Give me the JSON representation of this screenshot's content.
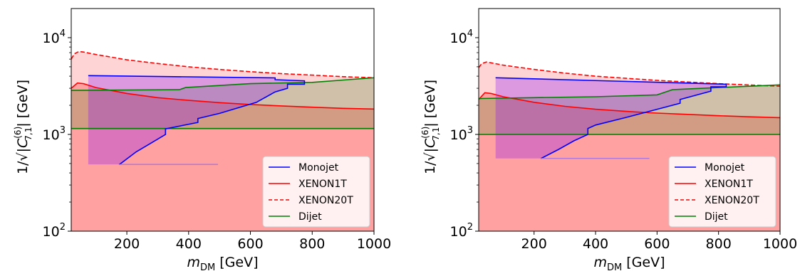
{
  "chart_data": [
    {
      "type": "line",
      "yscale": "log",
      "xlim": [
        20,
        1000
      ],
      "ylim": [
        100,
        20000
      ],
      "xlabel_main": "m",
      "xlabel_sub": "DM",
      "xlabel_unit": " [GeV]",
      "ylabel_prefix": "1/",
      "ylabel_sym": "|C",
      "ylabel_sup": "(6)",
      "ylabel_sub": "7,1",
      "ylabel_suffix": "| [GeV]",
      "xticks": [
        200,
        400,
        600,
        800,
        1000
      ],
      "xtick_labels": [
        "200",
        "400",
        "600",
        "800",
        "1000"
      ],
      "yticks": [
        {
          "value": 100,
          "base": "10",
          "exp": "2"
        },
        {
          "value": 1000,
          "base": "10",
          "exp": "3"
        },
        {
          "value": 10000,
          "base": "10",
          "exp": "4"
        }
      ],
      "legend": {
        "position": "lower right",
        "entries": [
          {
            "label": "Monojet",
            "color": "#0000ff",
            "dash": false
          },
          {
            "label": "XENON1T",
            "color": "#ff0000",
            "dash": false
          },
          {
            "label": "XENON20T",
            "color": "#ff0000",
            "dash": true
          },
          {
            "label": "Dijet",
            "color": "#007f00",
            "dash": false
          }
        ]
      },
      "series": [
        {
          "name": "Monojet",
          "color": "#0000ff",
          "fill": "#8000ff",
          "upper": [
            [
              75,
              4050
            ],
            [
              680,
              3840
            ],
            [
              680,
              3680
            ],
            [
              775,
              3580
            ]
          ],
          "right_lower": [
            [
              775,
              3580
            ],
            [
              775,
              3300
            ],
            [
              720,
              3300
            ],
            [
              720,
              3000
            ],
            [
              680,
              2750
            ],
            [
              625,
              2200
            ],
            [
              620,
              2150
            ],
            [
              500,
              1650
            ],
            [
              430,
              1460
            ],
            [
              430,
              1330
            ],
            [
              325,
              1140
            ],
            [
              325,
              1000
            ],
            [
              280,
              820
            ],
            [
              230,
              660
            ],
            [
              180,
              500
            ],
            [
              175,
              490
            ]
          ],
          "bottom": 490
        },
        {
          "name": "XENON1T",
          "color": "#ff0000",
          "fill": "#ff9090",
          "points": [
            [
              20,
              3000
            ],
            [
              40,
              3400
            ],
            [
              60,
              3350
            ],
            [
              100,
              3050
            ],
            [
              200,
              2650
            ],
            [
              300,
              2400
            ],
            [
              400,
              2250
            ],
            [
              500,
              2130
            ],
            [
              600,
              2040
            ],
            [
              700,
              1970
            ],
            [
              800,
              1910
            ],
            [
              900,
              1860
            ],
            [
              1000,
              1830
            ]
          ]
        },
        {
          "name": "XENON20T",
          "color": "#ff0000",
          "dash": true,
          "fill": "#ffd4d4",
          "points": [
            [
              20,
              6000
            ],
            [
              30,
              6800
            ],
            [
              45,
              7200
            ],
            [
              60,
              7100
            ],
            [
              100,
              6700
            ],
            [
              200,
              5900
            ],
            [
              300,
              5400
            ],
            [
              400,
              5000
            ],
            [
              500,
              4700
            ],
            [
              600,
              4450
            ],
            [
              700,
              4250
            ],
            [
              800,
              4100
            ],
            [
              900,
              3950
            ],
            [
              1000,
              3850
            ]
          ]
        },
        {
          "name": "Dijet",
          "color": "#007f00",
          "fill": "#bfd6a8",
          "lower": 1150,
          "upper": [
            [
              20,
              2850
            ],
            [
              370,
              2900
            ],
            [
              390,
              3050
            ],
            [
              600,
              3350
            ],
            [
              800,
              3450
            ],
            [
              1000,
              3850
            ]
          ]
        }
      ]
    },
    {
      "type": "line",
      "yscale": "log",
      "xlim": [
        20,
        1000
      ],
      "ylim": [
        100,
        20000
      ],
      "xlabel_main": "m",
      "xlabel_sub": "DM",
      "xlabel_unit": " [GeV]",
      "ylabel_prefix": "1/",
      "ylabel_sym": "|C",
      "ylabel_sup": "(6)",
      "ylabel_sub": "7,1",
      "ylabel_suffix": "| [GeV]",
      "xticks": [
        200,
        400,
        600,
        800,
        1000
      ],
      "xtick_labels": [
        "200",
        "400",
        "600",
        "800",
        "1000"
      ],
      "yticks": [
        {
          "value": 100,
          "base": "10",
          "exp": "2"
        },
        {
          "value": 1000,
          "base": "10",
          "exp": "3"
        },
        {
          "value": 10000,
          "base": "10",
          "exp": "4"
        }
      ],
      "legend": {
        "position": "lower right",
        "entries": [
          {
            "label": "Monojet",
            "color": "#0000ff",
            "dash": false
          },
          {
            "label": "XENON1T",
            "color": "#ff0000",
            "dash": false
          },
          {
            "label": "XENON20T",
            "color": "#ff0000",
            "dash": true
          },
          {
            "label": "Dijet",
            "color": "#007f00",
            "dash": false
          }
        ]
      },
      "series": [
        {
          "name": "Monojet",
          "color": "#0000ff",
          "fill": "#8000ff",
          "upper": [
            [
              75,
              3850
            ],
            [
              825,
              3300
            ]
          ],
          "right_lower": [
            [
              825,
              3300
            ],
            [
              825,
              3100
            ],
            [
              775,
              3100
            ],
            [
              775,
              2800
            ],
            [
              675,
              2300
            ],
            [
              675,
              2100
            ],
            [
              500,
              1500
            ],
            [
              400,
              1250
            ],
            [
              375,
              1150
            ],
            [
              375,
              1000
            ],
            [
              330,
              860
            ],
            [
              280,
              700
            ],
            [
              225,
              570
            ],
            [
              222,
              565
            ]
          ],
          "bottom": 565
        },
        {
          "name": "XENON1T",
          "color": "#ff0000",
          "fill": "#ff9090",
          "points": [
            [
              20,
              2300
            ],
            [
              40,
              2700
            ],
            [
              60,
              2650
            ],
            [
              100,
              2450
            ],
            [
              200,
              2150
            ],
            [
              300,
              1950
            ],
            [
              400,
              1820
            ],
            [
              500,
              1730
            ],
            [
              600,
              1660
            ],
            [
              700,
              1610
            ],
            [
              800,
              1560
            ],
            [
              900,
              1520
            ],
            [
              1000,
              1490
            ]
          ]
        },
        {
          "name": "XENON20T",
          "color": "#ff0000",
          "dash": true,
          "fill": "#ffd4d4",
          "points": [
            [
              20,
              4900
            ],
            [
              30,
              5400
            ],
            [
              45,
              5600
            ],
            [
              60,
              5500
            ],
            [
              100,
              5200
            ],
            [
              200,
              4700
            ],
            [
              300,
              4300
            ],
            [
              400,
              4000
            ],
            [
              500,
              3800
            ],
            [
              600,
              3620
            ],
            [
              700,
              3480
            ],
            [
              800,
              3350
            ],
            [
              900,
              3240
            ],
            [
              1000,
              3150
            ]
          ]
        },
        {
          "name": "Dijet",
          "color": "#007f00",
          "fill": "#bfd6a8",
          "lower": 1000,
          "upper": [
            [
              20,
              2350
            ],
            [
              200,
              2400
            ],
            [
              400,
              2450
            ],
            [
              600,
              2560
            ],
            [
              650,
              2900
            ],
            [
              800,
              3050
            ],
            [
              1000,
              3250
            ]
          ]
        }
      ]
    }
  ]
}
